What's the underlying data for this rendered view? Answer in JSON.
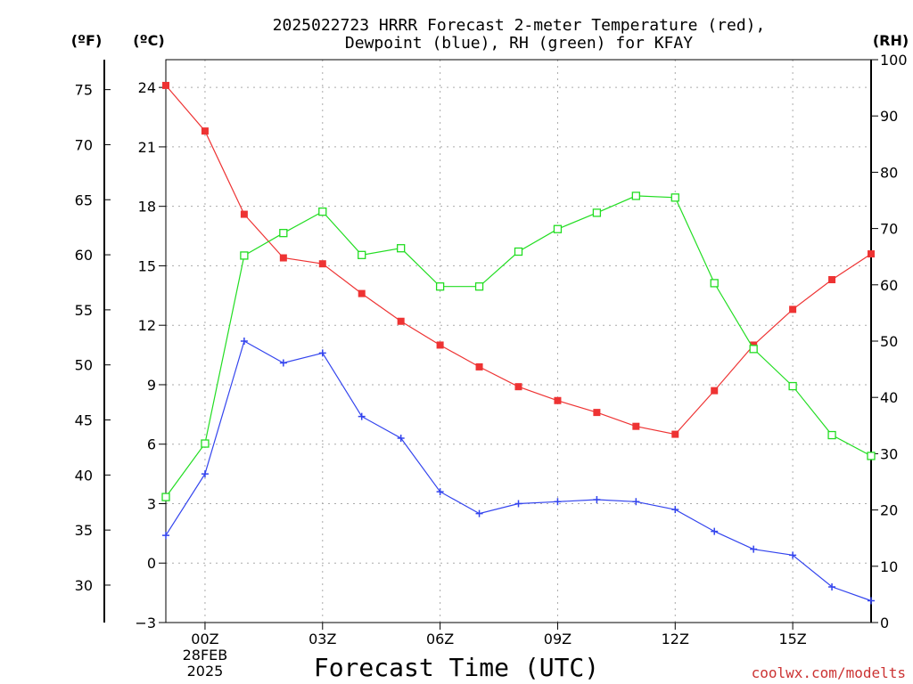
{
  "title_line1": "2025022723 HRRR Forecast 2-meter Temperature (red),",
  "title_line2": "Dewpoint (blue), RH (green) for KFAY",
  "unit_f": "(ºF)",
  "unit_c": "(ºC)",
  "unit_rh": "(RH)",
  "xlabel": "Forecast Time (UTC)",
  "credit": "coolwx.com/modelts",
  "x_ticks": [
    {
      "hour": 1,
      "lines": [
        "00Z",
        "28FEB",
        "2025"
      ]
    },
    {
      "hour": 4,
      "lines": [
        "03Z"
      ]
    },
    {
      "hour": 7,
      "lines": [
        "06Z"
      ]
    },
    {
      "hour": 10,
      "lines": [
        "09Z"
      ]
    },
    {
      "hour": 13,
      "lines": [
        "12Z"
      ]
    },
    {
      "hour": 16,
      "lines": [
        "15Z"
      ]
    }
  ],
  "chart_data": {
    "type": "line",
    "x": [
      "23Z",
      "00Z",
      "01Z",
      "02Z",
      "03Z",
      "04Z",
      "05Z",
      "06Z",
      "07Z",
      "08Z",
      "09Z",
      "10Z",
      "11Z",
      "12Z",
      "13Z",
      "14Z",
      "15Z",
      "16Z",
      "17Z"
    ],
    "x_range": [
      0,
      18
    ],
    "celsius_axis": {
      "range": [
        -3,
        25.4
      ],
      "ticks": [
        -3,
        0,
        3,
        6,
        9,
        12,
        15,
        18,
        21,
        24
      ]
    },
    "fahrenheit_axis": {
      "ticks": [
        30,
        35,
        40,
        45,
        50,
        55,
        60,
        65,
        70,
        75
      ]
    },
    "rh_axis": {
      "range": [
        0,
        100
      ],
      "ticks": [
        0,
        10,
        20,
        30,
        40,
        50,
        60,
        70,
        80,
        90,
        100
      ]
    },
    "grid": true,
    "series": [
      {
        "key": "temperature",
        "axis": "celsius",
        "color": "#ee3333",
        "marker": "filled-square",
        "values": [
          24.1,
          21.8,
          17.6,
          15.4,
          15.1,
          13.6,
          12.2,
          11.0,
          9.9,
          8.9,
          8.2,
          7.6,
          6.9,
          6.5,
          8.7,
          11.0,
          12.8,
          14.3,
          15.6
        ]
      },
      {
        "key": "dewpoint",
        "axis": "celsius",
        "color": "#3344ee",
        "marker": "plus",
        "values": [
          1.4,
          4.5,
          11.2,
          10.1,
          10.6,
          7.4,
          6.3,
          3.6,
          2.5,
          3.0,
          3.1,
          3.2,
          3.1,
          2.7,
          1.6,
          0.7,
          0.4,
          -1.2,
          -1.9
        ]
      },
      {
        "key": "rh",
        "axis": "rh",
        "color": "#22dd22",
        "marker": "open-square",
        "values": [
          22.3,
          31.8,
          65.2,
          69.2,
          73.0,
          65.3,
          66.5,
          59.7,
          59.7,
          65.9,
          69.9,
          72.8,
          75.8,
          75.5,
          60.3,
          48.6,
          42.0,
          33.3,
          29.6
        ]
      }
    ]
  }
}
